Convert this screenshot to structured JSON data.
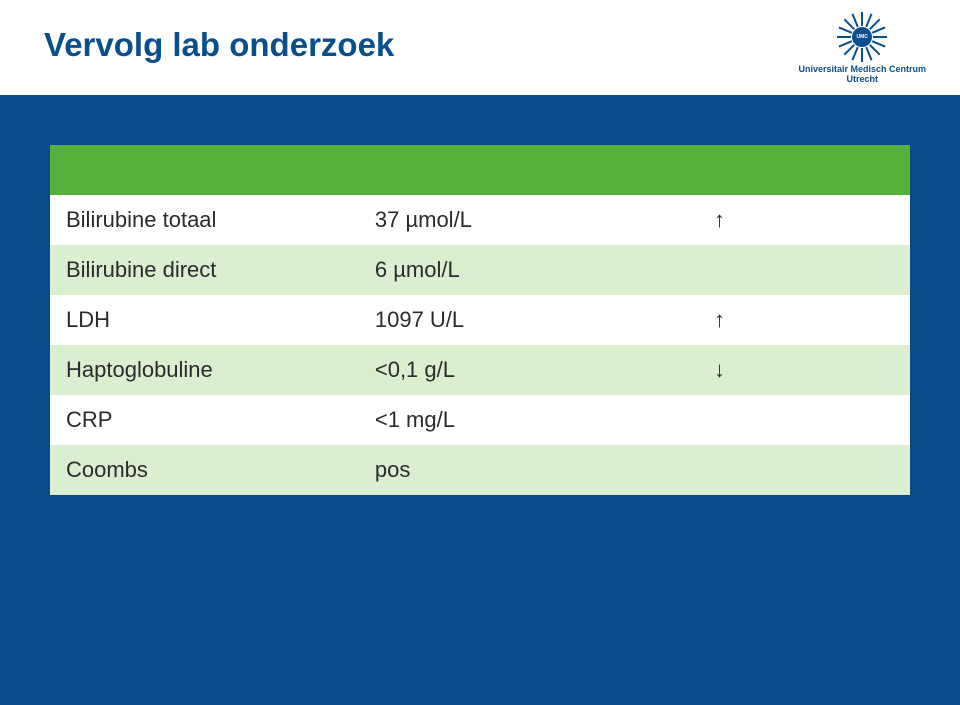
{
  "slide": {
    "title": "Vervolg lab onderzoek",
    "logo": {
      "line1": "Universitair Medisch Centrum",
      "line2": "Utrecht",
      "center": "UMC"
    }
  },
  "table": {
    "header_bg": "#55b13b",
    "stripe_bg": "#dbeed0",
    "row_bg": "#ffffff",
    "text_color": "#2b2b2b",
    "columns": [
      "param",
      "value",
      "flag"
    ],
    "rows": [
      {
        "param": "Bilirubine totaal",
        "value": "37 µmol/L",
        "flag": "↑"
      },
      {
        "param": "Bilirubine direct",
        "value": "6 µmol/L",
        "flag": ""
      },
      {
        "param": "LDH",
        "value": "1097 U/L",
        "flag": "↑"
      },
      {
        "param": "Haptoglobuline",
        "value": "<0,1 g/L",
        "flag": "↓"
      },
      {
        "param": "CRP",
        "value": "<1 mg/L",
        "flag": ""
      },
      {
        "param": "Coombs",
        "value": "pos",
        "flag": ""
      }
    ]
  },
  "colors": {
    "slide_bg": "#0a4e8c",
    "header_bg": "#ffffff",
    "title_color": "#0a4e8c"
  }
}
